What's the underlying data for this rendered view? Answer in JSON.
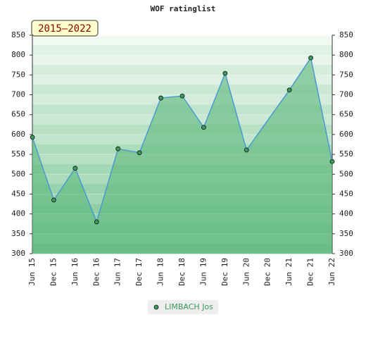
{
  "chart_data": {
    "type": "area-line",
    "title": "WOF ratinglist",
    "subtitle": "2015–2022",
    "xticks": [
      "Jun 15",
      "Dec 15",
      "Jun 16",
      "Dec 16",
      "Jun 17",
      "Dec 17",
      "Jun 18",
      "Dec 18",
      "Jun 19",
      "Dec 19",
      "Jun 20",
      "Dec 20",
      "Jun 21",
      "Dec 21",
      "Jun 22"
    ],
    "x": [
      "Jun 15",
      "Dec 15",
      "Jun 16",
      "Dec 16",
      "Jun 17",
      "Dec 17",
      "Jun 18",
      "Dec 18",
      "Jun 19",
      "Dec 19",
      "Jun 20",
      "Jun 21",
      "Dec 21",
      "Jun 22"
    ],
    "series": [
      {
        "name": "LIMBACH Jos",
        "color": "#4a9ad0",
        "marker_color": "#3a9a5a",
        "fill_color": "#5cb87a",
        "values": [
          593,
          435,
          515,
          380,
          564,
          554,
          692,
          697,
          618,
          754,
          561,
          712,
          793,
          532
        ]
      }
    ],
    "ylim": [
      300,
      850
    ],
    "yticks": [
      300,
      350,
      400,
      450,
      500,
      550,
      600,
      650,
      700,
      750,
      800,
      850
    ],
    "grid": true
  }
}
